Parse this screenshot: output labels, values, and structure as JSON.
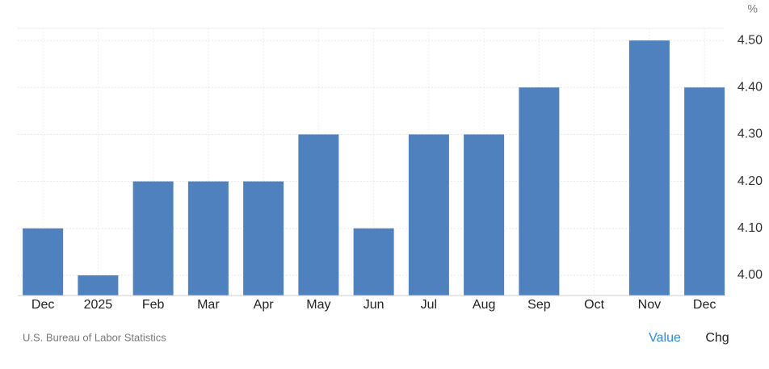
{
  "chart_data": {
    "type": "bar",
    "unit": "%",
    "categories": [
      "Dec",
      "2025",
      "Feb",
      "Mar",
      "Apr",
      "May",
      "Jun",
      "Jul",
      "Aug",
      "Sep",
      "Oct",
      "Nov",
      "Dec"
    ],
    "values": [
      4.1,
      4.0,
      4.2,
      4.2,
      4.2,
      4.3,
      4.1,
      4.3,
      4.3,
      4.4,
      null,
      4.5,
      4.4
    ],
    "color": "#4e81bd",
    "ylim": [
      3.957,
      4.526
    ],
    "yticks": [
      {
        "value": 4.0,
        "label": "4.00"
      },
      {
        "value": 4.1,
        "label": "4.10"
      },
      {
        "value": 4.2,
        "label": "4.20"
      },
      {
        "value": 4.3,
        "label": "4.30"
      },
      {
        "value": 4.4,
        "label": "4.40"
      },
      {
        "value": 4.5,
        "label": "4.50"
      }
    ],
    "grid": true,
    "source": "U.S. Bureau of Labor Statistics"
  },
  "controls": [
    "Value",
    "Chg"
  ]
}
